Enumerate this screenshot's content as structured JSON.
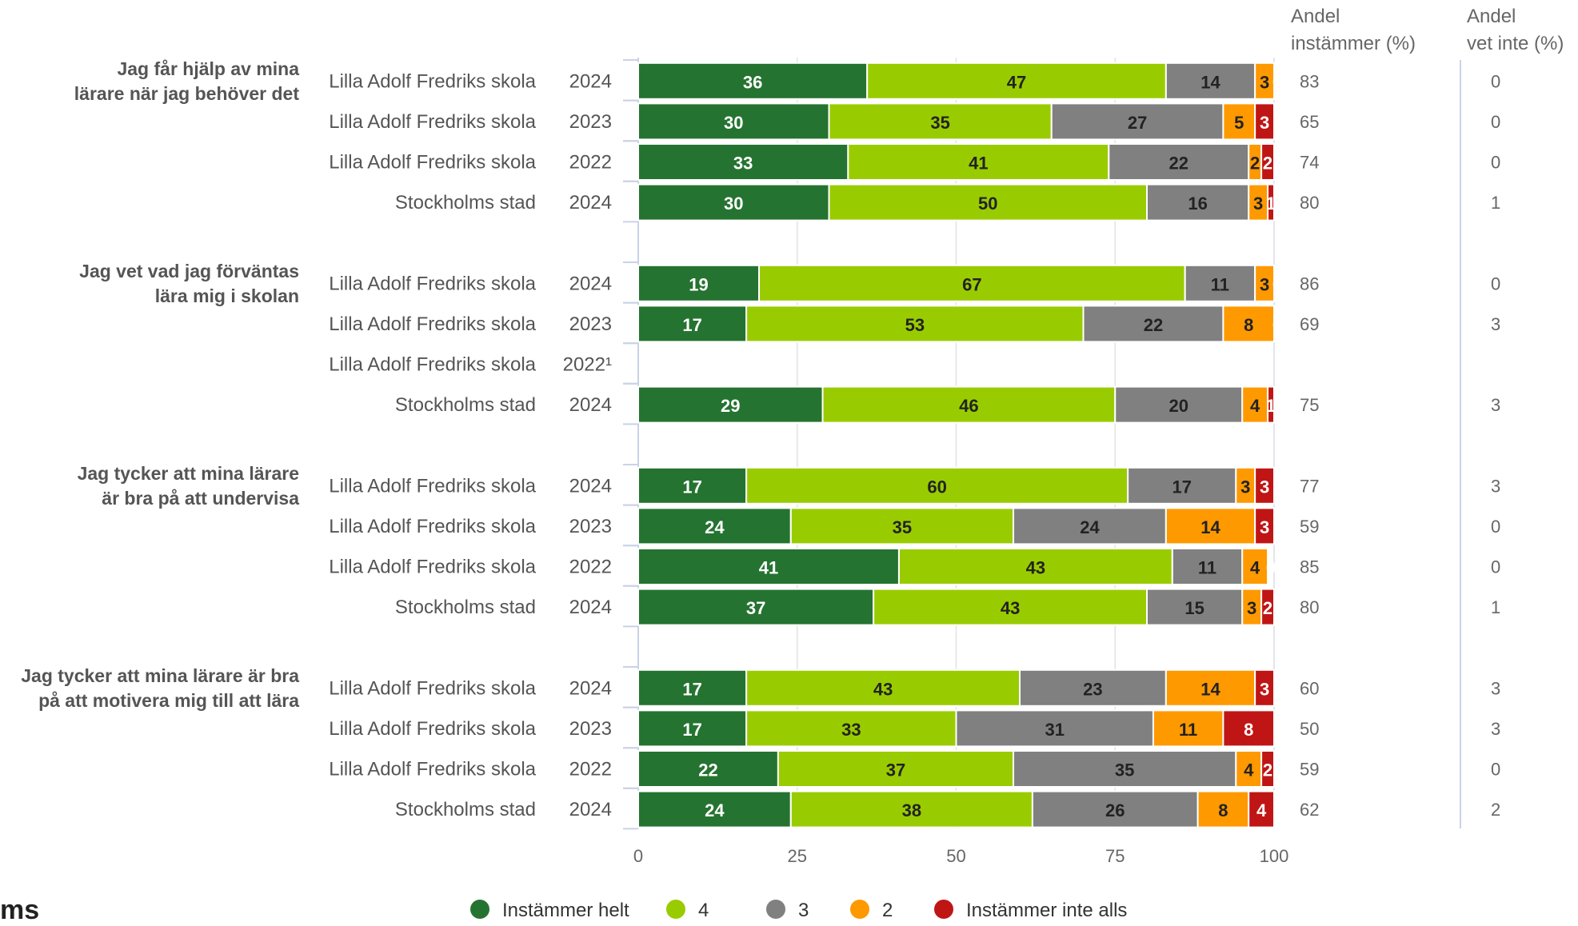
{
  "chart_data": {
    "type": "bar",
    "orientation": "horizontal",
    "stacked": true,
    "xlim": [
      0,
      100
    ],
    "x_ticks": [
      "0",
      "25",
      "50",
      "75",
      "100"
    ],
    "grid": true,
    "legend_position": "bottom",
    "right_columns": [
      {
        "header_line1": "Andel",
        "header_line2": "instämmer (%)"
      },
      {
        "header_line1": "Andel",
        "header_line2": "vet inte (%)"
      }
    ],
    "series": [
      {
        "name": "Instämmer helt",
        "color": "#257330"
      },
      {
        "name": "4",
        "color": "#99cc00"
      },
      {
        "name": "3",
        "color": "#808080"
      },
      {
        "name": "2",
        "color": "#ff9900"
      },
      {
        "name": "Instämmer inte alls",
        "color": "#c01515"
      }
    ],
    "groups": [
      {
        "question_lines": [
          "Jag får hjälp av mina",
          "lärare när jag behöver det"
        ],
        "rows": [
          {
            "school": "Lilla Adolf Fredriks skola",
            "year": "2024",
            "values": [
              36,
              47,
              14,
              3,
              0
            ],
            "agree": "83",
            "dont_know": "0"
          },
          {
            "school": "Lilla Adolf Fredriks skola",
            "year": "2023",
            "values": [
              30,
              35,
              27,
              5,
              3
            ],
            "agree": "65",
            "dont_know": "0"
          },
          {
            "school": "Lilla Adolf Fredriks skola",
            "year": "2022",
            "values": [
              33,
              41,
              22,
              2,
              2
            ],
            "agree": "74",
            "dont_know": "0"
          },
          {
            "school": "Stockholms stad",
            "year": "2024",
            "values": [
              30,
              50,
              16,
              3,
              1
            ],
            "agree": "80",
            "dont_know": "1"
          }
        ]
      },
      {
        "question_lines": [
          "Jag vet vad jag förväntas",
          "lära mig i skolan"
        ],
        "rows": [
          {
            "school": "Lilla Adolf Fredriks skola",
            "year": "2024",
            "values": [
              19,
              67,
              11,
              3,
              0
            ],
            "agree": "86",
            "dont_know": "0"
          },
          {
            "school": "Lilla Adolf Fredriks skola",
            "year": "2023",
            "values": [
              17,
              53,
              22,
              8,
              0
            ],
            "agree": "69",
            "dont_know": "3"
          },
          {
            "school": "Lilla Adolf Fredriks skola",
            "year": "2022¹",
            "values": null,
            "agree": "",
            "dont_know": ""
          },
          {
            "school": "Stockholms stad",
            "year": "2024",
            "values": [
              29,
              46,
              20,
              4,
              1
            ],
            "agree": "75",
            "dont_know": "3"
          }
        ]
      },
      {
        "question_lines": [
          "Jag tycker att mina lärare",
          "är bra på att undervisa"
        ],
        "rows": [
          {
            "school": "Lilla Adolf Fredriks skola",
            "year": "2024",
            "values": [
              17,
              60,
              17,
              3,
              3
            ],
            "agree": "77",
            "dont_know": "3"
          },
          {
            "school": "Lilla Adolf Fredriks skola",
            "year": "2023",
            "values": [
              24,
              35,
              24,
              14,
              3
            ],
            "agree": "59",
            "dont_know": "0"
          },
          {
            "school": "Lilla Adolf Fredriks skola",
            "year": "2022",
            "values": [
              41,
              43,
              11,
              4,
              0
            ],
            "agree": "85",
            "dont_know": "0"
          },
          {
            "school": "Stockholms stad",
            "year": "2024",
            "values": [
              37,
              43,
              15,
              3,
              2
            ],
            "agree": "80",
            "dont_know": "1"
          }
        ]
      },
      {
        "question_lines": [
          "Jag tycker att mina lärare är bra",
          "på att motivera mig till att lära"
        ],
        "rows": [
          {
            "school": "Lilla Adolf Fredriks skola",
            "year": "2024",
            "values": [
              17,
              43,
              23,
              14,
              3
            ],
            "agree": "60",
            "dont_know": "3"
          },
          {
            "school": "Lilla Adolf Fredriks skola",
            "year": "2023",
            "values": [
              17,
              33,
              31,
              11,
              8
            ],
            "agree": "50",
            "dont_know": "3"
          },
          {
            "school": "Lilla Adolf Fredriks skola",
            "year": "2022",
            "values": [
              22,
              37,
              35,
              4,
              2
            ],
            "agree": "59",
            "dont_know": "0"
          },
          {
            "school": "Stockholms stad",
            "year": "2024",
            "values": [
              24,
              38,
              26,
              8,
              4
            ],
            "agree": "62",
            "dont_know": "2"
          }
        ]
      }
    ]
  },
  "footer_cut_text": "ms"
}
